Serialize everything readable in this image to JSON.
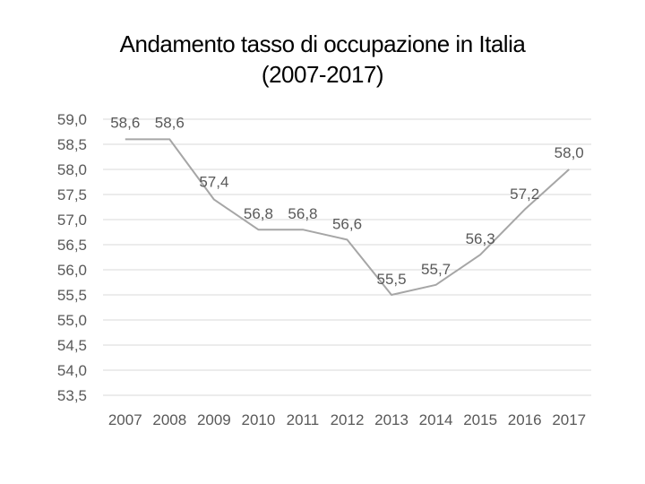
{
  "chart_data": {
    "type": "line",
    "title_lines": [
      "Andamento tasso di occupazione in Italia",
      "(2007-2017)"
    ],
    "categories": [
      "2007",
      "2008",
      "2009",
      "2010",
      "2011",
      "2012",
      "2013",
      "2014",
      "2015",
      "2016",
      "2017"
    ],
    "series": [
      {
        "name": "Tasso di occupazione",
        "values": [
          58.6,
          58.6,
          57.4,
          56.8,
          56.8,
          56.6,
          55.5,
          55.7,
          56.3,
          57.2,
          58.0
        ]
      }
    ],
    "data_labels": [
      "58,6",
      "58,6",
      "57,4",
      "56,8",
      "56,8",
      "56,6",
      "55,5",
      "55,7",
      "56,3",
      "57,2",
      "58,0"
    ],
    "y_ticks": [
      "59,0",
      "58,5",
      "58,0",
      "57,5",
      "57,0",
      "56,5",
      "56,0",
      "55,5",
      "55,0",
      "54,5",
      "54,0",
      "53,5"
    ],
    "ylim": [
      53.5,
      59.0
    ],
    "grid": true,
    "legend": "none",
    "line_color": "#a6a6a6",
    "grid_color": "#d9d9d9",
    "label_color": "#595959"
  }
}
